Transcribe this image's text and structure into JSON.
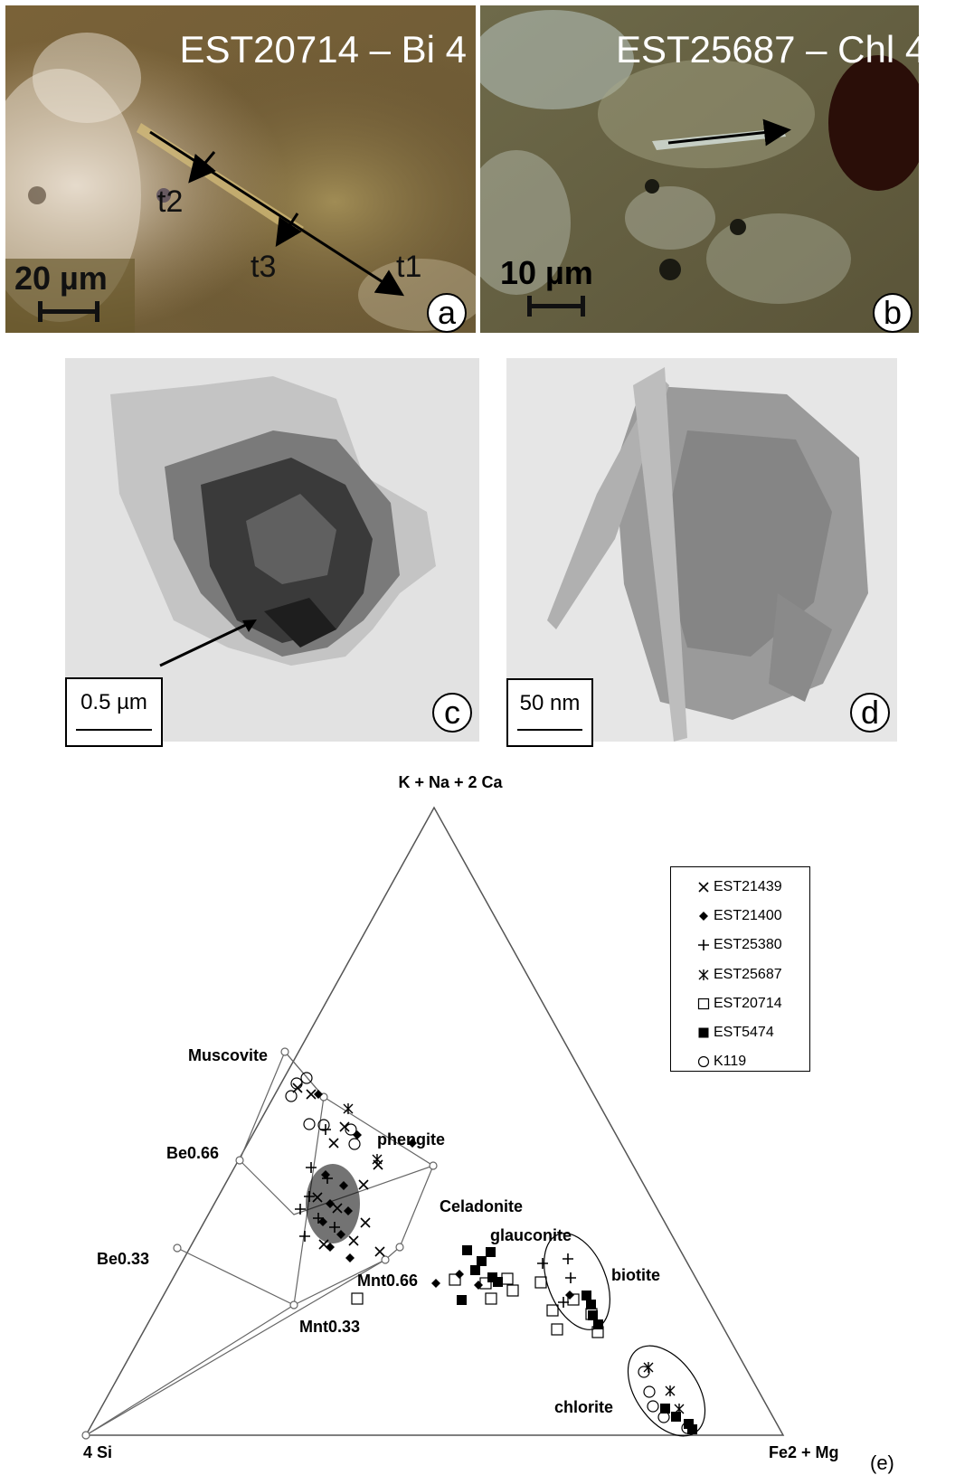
{
  "panels": {
    "a": {
      "label": "a",
      "title": "EST20714 – Bi 4",
      "scale": "20 µm",
      "points": [
        "t1",
        "t2",
        "t3"
      ]
    },
    "b": {
      "label": "b",
      "title": "EST25687 – Chl 4",
      "scale": "10 µm"
    },
    "c": {
      "label": "c",
      "scale": "0.5 µm"
    },
    "d": {
      "label": "d",
      "scale": "50 nm"
    }
  },
  "ternary": {
    "panel_label": "(e)",
    "apex_labels": {
      "top": "K + Na + 2 Ca",
      "left": "4 Si",
      "right": "Fe2 + Mg"
    },
    "reference_labels": {
      "muscovite": "Muscovite",
      "be066": "Be0.66",
      "be033": "Be0.33",
      "mnt066": "Mnt0.66",
      "mnt033": "Mnt0.33",
      "celadonite": "Celadonite",
      "phengite": "phengite",
      "glauconite": "glauconite",
      "biotite": "biotite",
      "chlorite": "chlorite"
    },
    "legend": [
      {
        "name": "EST21439",
        "marker": "x"
      },
      {
        "name": "EST21400",
        "marker": "filled-diamond"
      },
      {
        "name": "EST25380",
        "marker": "plus"
      },
      {
        "name": "EST25687",
        "marker": "asterisk"
      },
      {
        "name": "EST20714",
        "marker": "open-square"
      },
      {
        "name": "EST5474",
        "marker": "filled-square"
      },
      {
        "name": "K119",
        "marker": "open-circle"
      }
    ]
  }
}
